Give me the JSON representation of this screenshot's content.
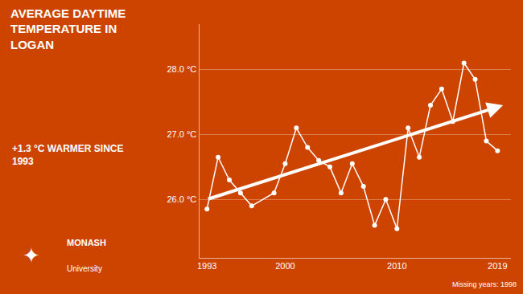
{
  "chart_data": {
    "type": "line",
    "title": "AVERAGE DAYTIME\nTEMPERATURE IN\nLOGAN",
    "subtitle": "+1.3 °C WARMER SINCE\n1993",
    "annotations": [
      "Missing years: 1998",
      "✦",
      "MONASH",
      "University"
    ],
    "x": [
      1993,
      1994,
      1995,
      1996,
      1997,
      1999,
      2000,
      2001,
      2002,
      2003,
      2004,
      2005,
      2006,
      2007,
      2008,
      2009,
      2010,
      2011,
      2012,
      2013,
      2014,
      2015,
      2016,
      2017,
      2018,
      2019
    ],
    "values": [
      25.85,
      26.65,
      26.3,
      26.1,
      25.9,
      26.1,
      26.55,
      27.1,
      26.8,
      26.6,
      26.5,
      26.1,
      26.55,
      26.2,
      25.6,
      26.0,
      25.55,
      27.1,
      26.65,
      27.45,
      27.7,
      27.2,
      28.1,
      27.85,
      26.9,
      26.75
    ],
    "color": "#ffffff",
    "marker": "circle",
    "background_color": "#cc4400",
    "trend": {
      "x": [
        1993,
        2019.5
      ],
      "y": [
        26.0,
        27.45
      ]
    },
    "xlim": [
      1992.3,
      2020.2
    ],
    "xticks": [
      1993,
      2000,
      2010,
      2019
    ],
    "ylim": [
      25.1,
      28.7
    ],
    "yticks": [
      {
        "value": 26.0,
        "label": "26.0 °C"
      },
      {
        "value": 27.0,
        "label": "27.0 °C"
      },
      {
        "value": 28.0,
        "label": "28.0 °C"
      }
    ],
    "grid": true
  }
}
